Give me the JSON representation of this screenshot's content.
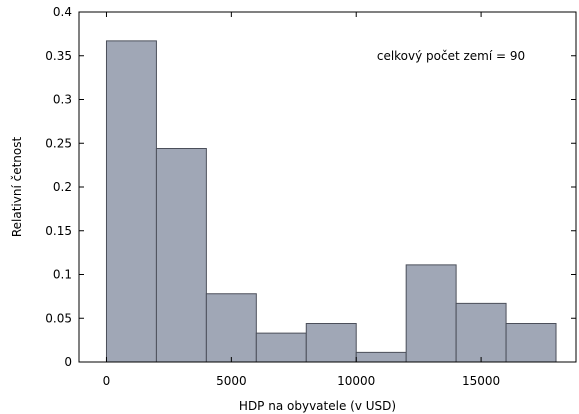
{
  "chart_data": {
    "type": "bar",
    "bin_edges": [
      0,
      2000,
      4000,
      6000,
      8000,
      10000,
      12000,
      14000,
      16000,
      18000
    ],
    "values": [
      0.367,
      0.244,
      0.078,
      0.033,
      0.044,
      0.011,
      0.111,
      0.067,
      0.044
    ],
    "xlabel": "HDP na obyvatele (v USD)",
    "ylabel": "Relativní četnost",
    "annotation": "celkový počet zemí = 90",
    "xlim": [
      -1100,
      18800
    ],
    "ylim": [
      0,
      0.4
    ],
    "xticks": [
      0,
      5000,
      10000,
      15000
    ],
    "yticks": [
      0,
      0.05,
      0.1,
      0.15,
      0.2,
      0.25,
      0.3,
      0.35,
      0.4
    ],
    "ytick_labels": [
      "0",
      "0.05",
      "0.1",
      "0.15",
      "0.2",
      "0.25",
      "0.3",
      "0.35",
      "0.4"
    ],
    "bar_color": "#a0a7b6",
    "bar_edge_color": "#4b4f5a",
    "grid": false
  }
}
